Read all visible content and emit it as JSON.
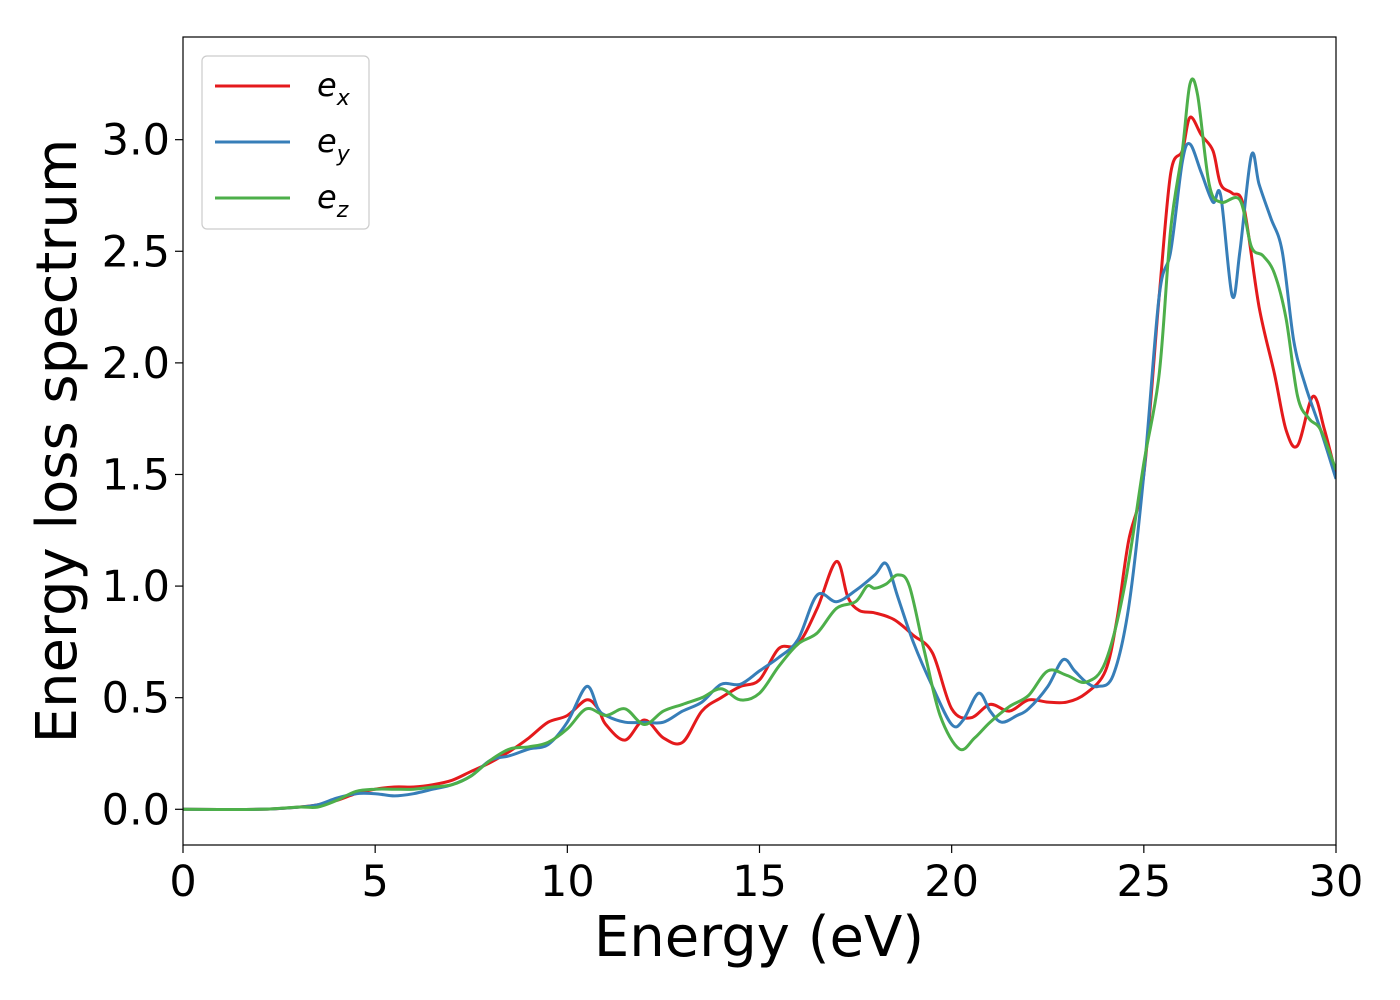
{
  "chart_data": {
    "type": "line",
    "title": "",
    "xlabel": "Energy (eV)",
    "ylabel": "Energy loss spectrum",
    "xlim": [
      0,
      30
    ],
    "ylim": [
      -0.16,
      3.46
    ],
    "xticks": [
      0,
      5,
      10,
      15,
      20,
      25,
      30
    ],
    "xtick_labels": [
      "0",
      "5",
      "10",
      "15",
      "20",
      "25",
      "30"
    ],
    "yticks": [
      0.0,
      0.5,
      1.0,
      1.5,
      2.0,
      2.5,
      3.0
    ],
    "ytick_labels": [
      "0.0",
      "0.5",
      "1.0",
      "1.5",
      "2.0",
      "2.5",
      "3.0"
    ],
    "grid": false,
    "legend": {
      "position": "top-left"
    },
    "series": [
      {
        "name": "e_x",
        "label_base": "e",
        "label_sub": "x",
        "color": "#e41a1c",
        "points": [
          [
            0,
            0
          ],
          [
            2,
            0
          ],
          [
            3,
            0.01
          ],
          [
            3.5,
            0.02
          ],
          [
            4,
            0.04
          ],
          [
            4.5,
            0.07
          ],
          [
            5,
            0.09
          ],
          [
            5.5,
            0.1
          ],
          [
            6,
            0.1
          ],
          [
            6.5,
            0.11
          ],
          [
            7,
            0.13
          ],
          [
            7.5,
            0.17
          ],
          [
            8,
            0.21
          ],
          [
            8.5,
            0.26
          ],
          [
            9,
            0.32
          ],
          [
            9.5,
            0.39
          ],
          [
            10,
            0.42
          ],
          [
            10.5,
            0.49
          ],
          [
            10.8,
            0.45
          ],
          [
            11,
            0.38
          ],
          [
            11.5,
            0.31
          ],
          [
            12,
            0.4
          ],
          [
            12.5,
            0.32
          ],
          [
            13,
            0.3
          ],
          [
            13.5,
            0.44
          ],
          [
            14,
            0.5
          ],
          [
            14.5,
            0.55
          ],
          [
            15,
            0.58
          ],
          [
            15.5,
            0.72
          ],
          [
            16,
            0.74
          ],
          [
            16.5,
            0.9
          ],
          [
            17,
            1.11
          ],
          [
            17.3,
            0.95
          ],
          [
            17.6,
            0.89
          ],
          [
            18,
            0.88
          ],
          [
            18.5,
            0.85
          ],
          [
            19,
            0.78
          ],
          [
            19.5,
            0.7
          ],
          [
            20,
            0.45
          ],
          [
            20.5,
            0.41
          ],
          [
            21,
            0.47
          ],
          [
            21.5,
            0.44
          ],
          [
            22,
            0.49
          ],
          [
            22.5,
            0.48
          ],
          [
            23,
            0.48
          ],
          [
            23.5,
            0.52
          ],
          [
            24,
            0.62
          ],
          [
            24.3,
            0.85
          ],
          [
            24.6,
            1.2
          ],
          [
            25,
            1.5
          ],
          [
            25.4,
            2.3
          ],
          [
            25.7,
            2.85
          ],
          [
            26,
            2.95
          ],
          [
            26.2,
            3.1
          ],
          [
            26.5,
            3.02
          ],
          [
            26.8,
            2.95
          ],
          [
            27,
            2.8
          ],
          [
            27.3,
            2.76
          ],
          [
            27.6,
            2.7
          ],
          [
            28,
            2.25
          ],
          [
            28.4,
            1.95
          ],
          [
            28.7,
            1.7
          ],
          [
            29,
            1.63
          ],
          [
            29.4,
            1.85
          ],
          [
            29.7,
            1.7
          ],
          [
            30,
            1.5
          ]
        ]
      },
      {
        "name": "e_y",
        "label_base": "e",
        "label_sub": "y",
        "color": "#377eb8",
        "points": [
          [
            0,
            0
          ],
          [
            2,
            0
          ],
          [
            3,
            0.01
          ],
          [
            3.5,
            0.02
          ],
          [
            4,
            0.05
          ],
          [
            4.5,
            0.07
          ],
          [
            5,
            0.07
          ],
          [
            5.5,
            0.06
          ],
          [
            6,
            0.07
          ],
          [
            6.5,
            0.09
          ],
          [
            7,
            0.11
          ],
          [
            7.5,
            0.15
          ],
          [
            8,
            0.22
          ],
          [
            8.5,
            0.24
          ],
          [
            9,
            0.27
          ],
          [
            9.5,
            0.29
          ],
          [
            10,
            0.39
          ],
          [
            10.5,
            0.55
          ],
          [
            10.8,
            0.45
          ],
          [
            11,
            0.42
          ],
          [
            11.5,
            0.39
          ],
          [
            12,
            0.39
          ],
          [
            12.5,
            0.39
          ],
          [
            13,
            0.44
          ],
          [
            13.5,
            0.48
          ],
          [
            14,
            0.56
          ],
          [
            14.5,
            0.56
          ],
          [
            15,
            0.62
          ],
          [
            15.5,
            0.68
          ],
          [
            16,
            0.76
          ],
          [
            16.5,
            0.96
          ],
          [
            17,
            0.93
          ],
          [
            17.5,
            0.98
          ],
          [
            18,
            1.05
          ],
          [
            18.3,
            1.1
          ],
          [
            18.6,
            0.95
          ],
          [
            19,
            0.75
          ],
          [
            19.5,
            0.55
          ],
          [
            20,
            0.38
          ],
          [
            20.3,
            0.4
          ],
          [
            20.7,
            0.52
          ],
          [
            21,
            0.44
          ],
          [
            21.3,
            0.39
          ],
          [
            21.7,
            0.42
          ],
          [
            22,
            0.45
          ],
          [
            22.5,
            0.55
          ],
          [
            22.9,
            0.67
          ],
          [
            23.2,
            0.62
          ],
          [
            23.5,
            0.57
          ],
          [
            23.8,
            0.55
          ],
          [
            24.2,
            0.6
          ],
          [
            24.6,
            0.9
          ],
          [
            25,
            1.5
          ],
          [
            25.4,
            2.3
          ],
          [
            25.7,
            2.5
          ],
          [
            26,
            2.9
          ],
          [
            26.2,
            2.98
          ],
          [
            26.5,
            2.85
          ],
          [
            26.8,
            2.72
          ],
          [
            27,
            2.75
          ],
          [
            27.3,
            2.3
          ],
          [
            27.5,
            2.5
          ],
          [
            27.8,
            2.93
          ],
          [
            28,
            2.8
          ],
          [
            28.3,
            2.65
          ],
          [
            28.6,
            2.5
          ],
          [
            28.9,
            2.1
          ],
          [
            29.2,
            1.9
          ],
          [
            29.6,
            1.7
          ],
          [
            30,
            1.48
          ]
        ]
      },
      {
        "name": "e_z",
        "label_base": "e",
        "label_sub": "z",
        "color": "#4daf4a",
        "points": [
          [
            0,
            0
          ],
          [
            2,
            0
          ],
          [
            3,
            0.01
          ],
          [
            3.5,
            0.01
          ],
          [
            4,
            0.04
          ],
          [
            4.5,
            0.08
          ],
          [
            5,
            0.09
          ],
          [
            5.5,
            0.09
          ],
          [
            6,
            0.09
          ],
          [
            6.5,
            0.1
          ],
          [
            7,
            0.11
          ],
          [
            7.5,
            0.15
          ],
          [
            8,
            0.22
          ],
          [
            8.5,
            0.27
          ],
          [
            9,
            0.28
          ],
          [
            9.5,
            0.3
          ],
          [
            10,
            0.36
          ],
          [
            10.5,
            0.45
          ],
          [
            11,
            0.42
          ],
          [
            11.5,
            0.45
          ],
          [
            12,
            0.38
          ],
          [
            12.5,
            0.44
          ],
          [
            13,
            0.47
          ],
          [
            13.5,
            0.5
          ],
          [
            14,
            0.54
          ],
          [
            14.5,
            0.49
          ],
          [
            15,
            0.52
          ],
          [
            15.5,
            0.64
          ],
          [
            16,
            0.74
          ],
          [
            16.5,
            0.79
          ],
          [
            17,
            0.9
          ],
          [
            17.5,
            0.93
          ],
          [
            17.8,
            1.0
          ],
          [
            18,
            0.99
          ],
          [
            18.3,
            1.01
          ],
          [
            18.6,
            1.05
          ],
          [
            18.9,
            1.0
          ],
          [
            19.3,
            0.7
          ],
          [
            19.7,
            0.42
          ],
          [
            20.2,
            0.27
          ],
          [
            20.6,
            0.32
          ],
          [
            21,
            0.39
          ],
          [
            21.5,
            0.46
          ],
          [
            22,
            0.51
          ],
          [
            22.5,
            0.62
          ],
          [
            23,
            0.6
          ],
          [
            23.5,
            0.57
          ],
          [
            24,
            0.66
          ],
          [
            24.5,
            1.0
          ],
          [
            25,
            1.55
          ],
          [
            25.4,
            1.95
          ],
          [
            25.7,
            2.6
          ],
          [
            26,
            2.95
          ],
          [
            26.2,
            3.25
          ],
          [
            26.4,
            3.2
          ],
          [
            26.7,
            2.8
          ],
          [
            27,
            2.72
          ],
          [
            27.5,
            2.73
          ],
          [
            27.8,
            2.52
          ],
          [
            28.1,
            2.48
          ],
          [
            28.4,
            2.4
          ],
          [
            28.7,
            2.2
          ],
          [
            29,
            1.85
          ],
          [
            29.3,
            1.75
          ],
          [
            29.6,
            1.7
          ],
          [
            30,
            1.52
          ]
        ]
      }
    ]
  }
}
